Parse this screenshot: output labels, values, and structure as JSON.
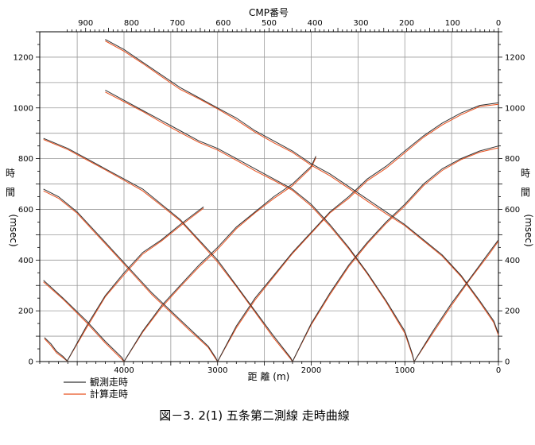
{
  "chart_data": {
    "type": "line",
    "title": "図－3. 2(1)  五条第二測線 走時曲線",
    "top_axis_label": "CMP番号",
    "top_ticks": [
      900,
      800,
      700,
      600,
      500,
      400,
      300,
      200,
      100,
      0
    ],
    "xlabel": "距 離 (m)",
    "x_ticks": [
      4000,
      3000,
      2000,
      1000,
      0
    ],
    "xlim": [
      4900,
      0
    ],
    "ylabel_chars": [
      "時",
      "間"
    ],
    "ylabel_unit": "(msec)",
    "y_ticks": [
      0,
      200,
      400,
      600,
      800,
      1000,
      1200
    ],
    "ylim": [
      0,
      1300
    ],
    "grid": true,
    "legend_position": "bottom-left",
    "series": [
      {
        "name": "観測走時",
        "color": "#333333"
      },
      {
        "name": "計算走時",
        "color": "#e8501e"
      }
    ],
    "shots": [
      {
        "branches": [
          {
            "x": [
              4850,
              4780,
              4720,
              4650,
              4600
            ],
            "y": [
              95,
              70,
              40,
              20,
              0
            ]
          },
          {
            "x": [
              4610,
              4400,
              4200,
              4000,
              3800,
              3600,
              3400,
              3150
            ],
            "y": [
              0,
              140,
              260,
              350,
              430,
              480,
              540,
              610
            ]
          }
        ]
      },
      {
        "branches": [
          {
            "x": [
              4860,
              4650,
              4400,
              4200,
              4020,
              4000
            ],
            "y": [
              320,
              250,
              160,
              80,
              15,
              0
            ]
          },
          {
            "x": [
              4000,
              3800,
              3600,
              3400,
              3200,
              3000,
              2800,
              2600,
              2400,
              2200,
              2000,
              1950
            ],
            "y": [
              0,
              120,
              220,
              300,
              380,
              450,
              530,
              590,
              650,
              700,
              770,
              810
            ]
          }
        ]
      },
      {
        "branches": [
          {
            "x": [
              4860,
              4700,
              4500,
              4300,
              4100,
              3900,
              3700,
              3500,
              3300,
              3100,
              3020,
              3000
            ],
            "y": [
              680,
              650,
              590,
              510,
              430,
              350,
              270,
              200,
              130,
              60,
              15,
              0
            ]
          },
          {
            "x": [
              3000,
              2800,
              2600,
              2400,
              2200,
              2000,
              1800,
              1600,
              1400,
              1200,
              1000,
              800,
              600,
              400,
              200,
              0
            ],
            "y": [
              0,
              140,
              250,
              340,
              430,
              510,
              590,
              650,
              720,
              770,
              830,
              890,
              940,
              980,
              1010,
              1020
            ]
          }
        ]
      },
      {
        "branches": [
          {
            "x": [
              4860,
              4600,
              4400,
              4200,
              4000,
              3800,
              3600,
              3400,
              3200,
              3000,
              2800,
              2600,
              2400,
              2220,
              2200
            ],
            "y": [
              880,
              840,
              800,
              760,
              720,
              680,
              620,
              560,
              480,
              400,
              300,
              200,
              100,
              15,
              0
            ]
          },
          {
            "x": [
              2200,
              2000,
              1800,
              1600,
              1400,
              1200,
              1000,
              800,
              600,
              400,
              200,
              0
            ],
            "y": [
              0,
              150,
              270,
              380,
              470,
              550,
              620,
              700,
              760,
              800,
              830,
              850
            ]
          }
        ]
      },
      {
        "branches": [
          {
            "x": [
              4200,
              4000,
              3800,
              3600,
              3400,
              3200,
              3000,
              2800,
              2600,
              2400,
              2200,
              2000,
              1800,
              1600,
              1400,
              1200,
              1000,
              920,
              900
            ],
            "y": [
              1070,
              1030,
              990,
              950,
              910,
              870,
              840,
              800,
              760,
              720,
              680,
              620,
              540,
              450,
              350,
              240,
              120,
              30,
              0
            ]
          },
          {
            "x": [
              900,
              700,
              500,
              300,
              100,
              0
            ],
            "y": [
              0,
              120,
              230,
              330,
              430,
              480
            ]
          }
        ]
      },
      {
        "branches": [
          {
            "x": [
              4200,
              4000,
              3800,
              3600,
              3400,
              3200,
              3000,
              2800,
              2600,
              2400,
              2200,
              2000,
              1800,
              1600,
              1400,
              1200,
              1000,
              800,
              600,
              400,
              200,
              50,
              0
            ],
            "y": [
              1270,
              1230,
              1180,
              1130,
              1080,
              1040,
              1000,
              960,
              910,
              870,
              830,
              780,
              740,
              690,
              640,
              590,
              540,
              480,
              420,
              340,
              240,
              160,
              110
            ]
          }
        ]
      }
    ]
  }
}
